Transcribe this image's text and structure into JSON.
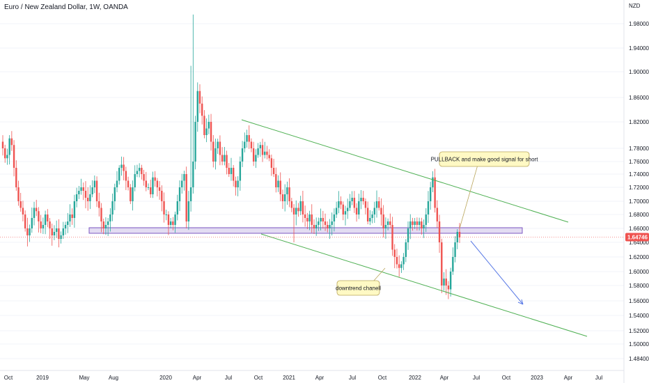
{
  "header": {
    "title": "Euro / New Zealand Dollar, 1W, OANDA"
  },
  "axis": {
    "unit": "NZD",
    "current_price_label": "1.64746"
  },
  "colors": {
    "up": "#26a69a",
    "down": "#ef5350",
    "channel": "#4caf50",
    "zone_fill": "#d1c4e9",
    "zone_stroke": "#7e57c2",
    "arrow": "#5b7be6",
    "callout_fill": "#fff9c4",
    "callout_stroke": "#b9a55a",
    "price_line": "#ef5350",
    "axis_bg": "#ffffff",
    "grid": "#f0f3fa"
  },
  "annotations": {
    "pullback_note": "PULLBACK and make good signal for short",
    "channel_note": "downtrend chanell"
  },
  "chart_data": {
    "type": "candlestick",
    "title": "Euro / New Zealand Dollar, 1W, OANDA",
    "ylabel": "NZD",
    "ylim": [
      1.47,
      2.0
    ],
    "y_ticks": [
      "1.98000",
      "1.94000",
      "1.90000",
      "1.86000",
      "1.82000",
      "1.78000",
      "1.76000",
      "1.74000",
      "1.72000",
      "1.70000",
      "1.68000",
      "1.66000",
      "1.64000",
      "1.62000",
      "1.60000",
      "1.58000",
      "1.56000",
      "1.54000",
      "1.52000",
      "1.50000",
      "1.48400"
    ],
    "x_ticks": [
      "Oct",
      "2019",
      "May",
      "Aug",
      "2020",
      "Apr",
      "Jul",
      "Oct",
      "2021",
      "Apr",
      "Jul",
      "Oct",
      "2022",
      "Apr",
      "Jul",
      "Oct",
      "2023",
      "Apr",
      "Jul"
    ],
    "last_price": 1.64746,
    "support_zone": [
      1.653,
      1.661
    ],
    "close_path": [
      1.78,
      1.765,
      1.77,
      1.795,
      1.785,
      1.75,
      1.72,
      1.7,
      1.69,
      1.68,
      1.66,
      1.65,
      1.66,
      1.675,
      1.69,
      1.685,
      1.67,
      1.66,
      1.665,
      1.68,
      1.67,
      1.66,
      1.65,
      1.655,
      1.66,
      1.645,
      1.65,
      1.66,
      1.665,
      1.67,
      1.68,
      1.675,
      1.7,
      1.71,
      1.715,
      1.72,
      1.715,
      1.705,
      1.7,
      1.71,
      1.72,
      1.73,
      1.7,
      1.69,
      1.67,
      1.66,
      1.665,
      1.67,
      1.68,
      1.7,
      1.72,
      1.73,
      1.75,
      1.755,
      1.745,
      1.73,
      1.72,
      1.7,
      1.72,
      1.74,
      1.745,
      1.75,
      1.74,
      1.73,
      1.72,
      1.72,
      1.71,
      1.735,
      1.73,
      1.72,
      1.715,
      1.7,
      1.68,
      1.68,
      1.665,
      1.67,
      1.665,
      1.68,
      1.7,
      1.72,
      1.73,
      1.74,
      1.67,
      1.7,
      1.72,
      1.76,
      1.82,
      1.87,
      1.85,
      1.83,
      1.8,
      1.81,
      1.82,
      1.79,
      1.76,
      1.78,
      1.79,
      1.77,
      1.76,
      1.77,
      1.75,
      1.74,
      1.75,
      1.73,
      1.72,
      1.73,
      1.76,
      1.78,
      1.79,
      1.8,
      1.79,
      1.78,
      1.76,
      1.77,
      1.78,
      1.785,
      1.77,
      1.775,
      1.77,
      1.765,
      1.75,
      1.74,
      1.72,
      1.73,
      1.71,
      1.7,
      1.71,
      1.72,
      1.7,
      1.69,
      1.68,
      1.69,
      1.685,
      1.7,
      1.68,
      1.675,
      1.67,
      1.68,
      1.665,
      1.66,
      1.665,
      1.67,
      1.675,
      1.67,
      1.665,
      1.66,
      1.665,
      1.67,
      1.68,
      1.69,
      1.7,
      1.695,
      1.68,
      1.685,
      1.69,
      1.7,
      1.705,
      1.69,
      1.68,
      1.7,
      1.705,
      1.7,
      1.69,
      1.67,
      1.675,
      1.68,
      1.69,
      1.7,
      1.69,
      1.68,
      1.66,
      1.665,
      1.67,
      1.665,
      1.63,
      1.62,
      1.61,
      1.605,
      1.61,
      1.62,
      1.64,
      1.66,
      1.67,
      1.665,
      1.67,
      1.665,
      1.67,
      1.66,
      1.665,
      1.68,
      1.7,
      1.72,
      1.735,
      1.69,
      1.67,
      1.64,
      1.58,
      1.59,
      1.58,
      1.575,
      1.6,
      1.62,
      1.64,
      1.655,
      1.647
    ]
  }
}
